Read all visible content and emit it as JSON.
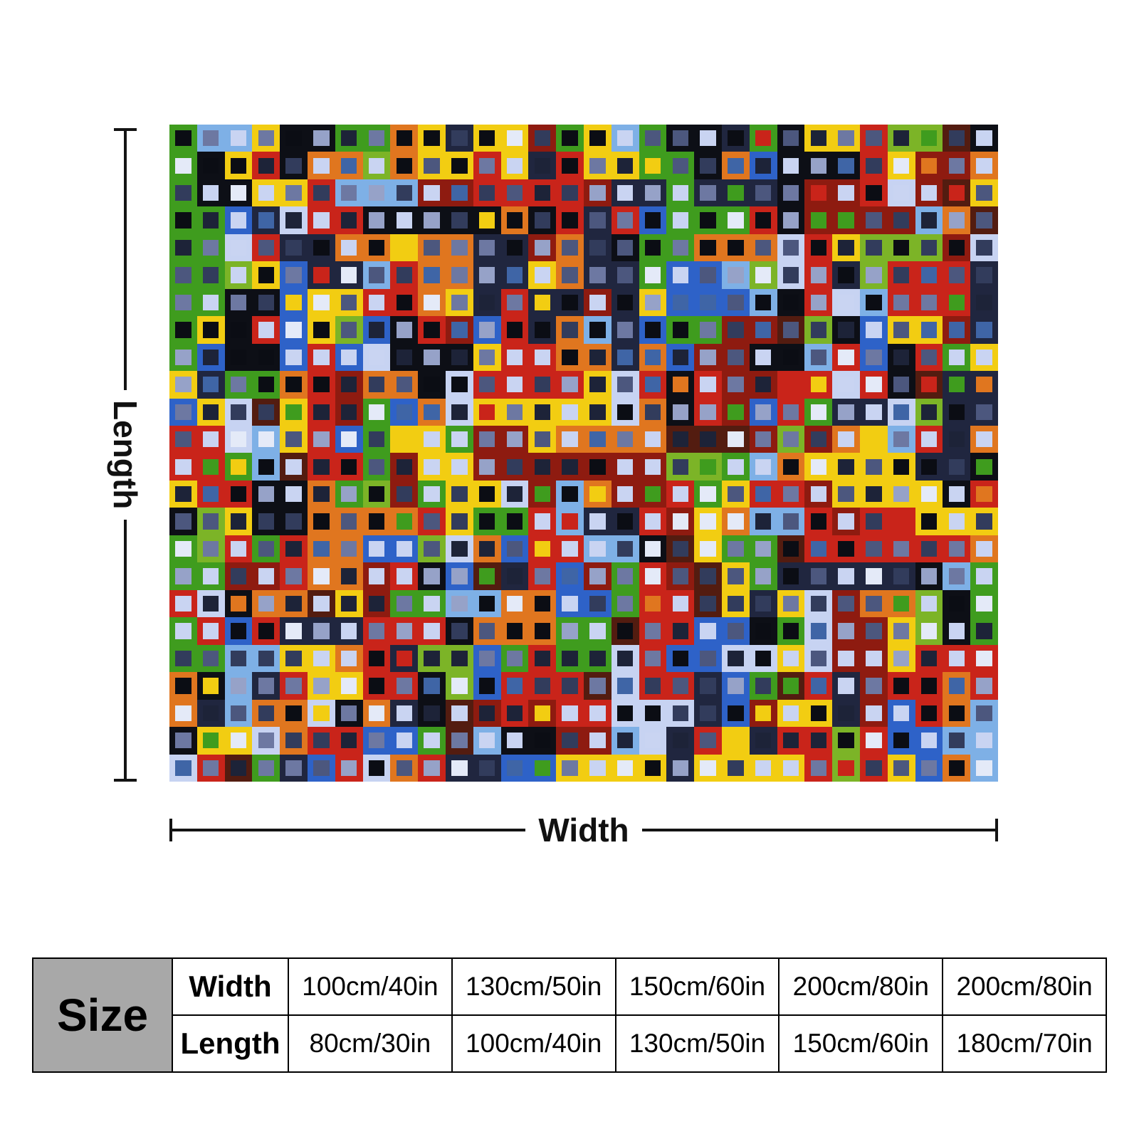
{
  "dimensions": {
    "length_label": "Length",
    "width_label": "Width"
  },
  "size_table": {
    "title": "Size",
    "rows": [
      {
        "label": "Width",
        "values": [
          "100cm/40in",
          "130cm/50in",
          "150cm/60in",
          "200cm/80in",
          "200cm/80in"
        ]
      },
      {
        "label": "Length",
        "values": [
          "80cm/30in",
          "100cm/40in",
          "130cm/50in",
          "150cm/60in",
          "180cm/70in"
        ]
      }
    ]
  },
  "mosaic": {
    "description": "colorful-square-grid-pattern",
    "rows": 24,
    "cols": 30,
    "seed": 20240613,
    "frame_colors": [
      "#c9241a",
      "#8e1b10",
      "#e0761f",
      "#f2cd12",
      "#3f9c1e",
      "#7cb427",
      "#2e62c8",
      "#7eb0e6",
      "#c7d3f2",
      "#20263f",
      "#0d0f16",
      "#531c10"
    ],
    "frame_weights": [
      14,
      5,
      9,
      9,
      7,
      4,
      7,
      5,
      7,
      9,
      9,
      3
    ],
    "inner_colors": [
      "#0b0d14",
      "#1d2338",
      "#323c5c",
      "#4c577e",
      "#6d78a2",
      "#96a2c8",
      "#c9d4f2",
      "#e4eaf8",
      "#3f65a6",
      "#f2cd12",
      "#c9241a",
      "#3f9c1e",
      "#e0761f"
    ],
    "inner_weights": [
      13,
      10,
      11,
      9,
      8,
      7,
      14,
      5,
      5,
      2,
      2,
      2,
      1
    ]
  },
  "colors": {
    "dimension_line": "#141414",
    "table_border": "#000000",
    "size_cell_bg": "#a8a8a8",
    "page_bg": "#ffffff"
  }
}
